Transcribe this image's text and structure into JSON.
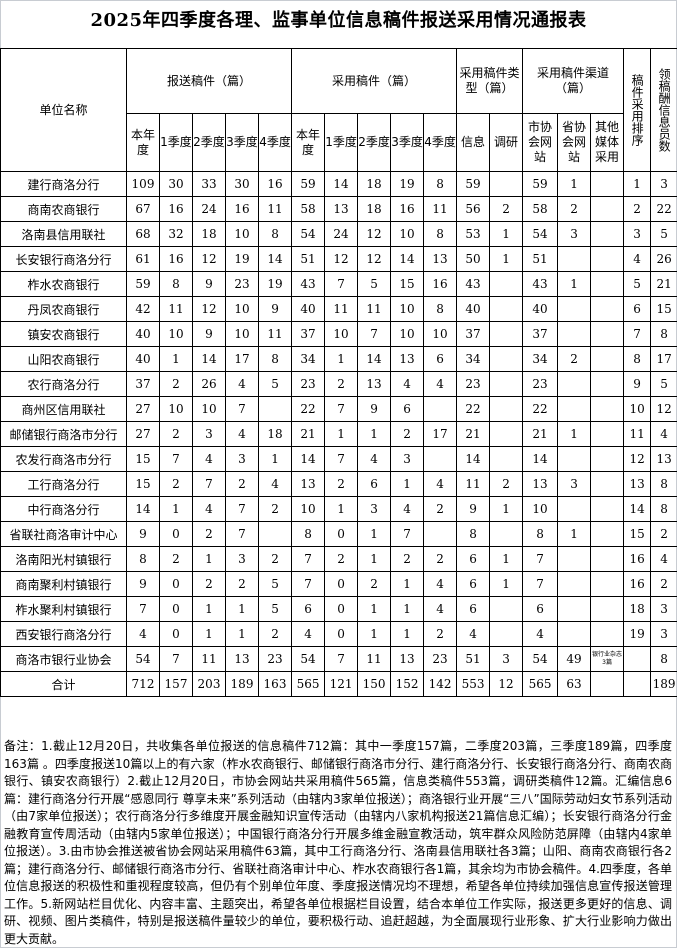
{
  "title": "2025年四季度各理、监事单位信息稿件报送采用情况通报表",
  "headers": {
    "unit_name": "单位名称",
    "submitted_group": "报送稿件（篇）",
    "adopted_group": "采用稿件（篇）",
    "type_group": "采用稿件类型（篇）",
    "channel_group": "采用稿件渠道（篇）",
    "rank": "稿件采用排序",
    "payees": "领稿酬信息员数",
    "submitted_cols": [
      "本年度",
      "1季度",
      "2季度",
      "3季度",
      "4季度"
    ],
    "adopted_cols": [
      "本年度",
      "1季度",
      "2季度",
      "3季度",
      "4季度"
    ],
    "type_cols": [
      "信息",
      "调研"
    ],
    "channel_cols": [
      "市协会网站",
      "省协会网站",
      "其他媒体采用"
    ]
  },
  "rows": [
    [
      "建行商洛分行",
      "109",
      "30",
      "33",
      "30",
      "16",
      "59",
      "14",
      "18",
      "19",
      "8",
      "59",
      "",
      "59",
      "1",
      "",
      "1",
      "3"
    ],
    [
      "商南农商银行",
      "67",
      "16",
      "24",
      "16",
      "11",
      "58",
      "13",
      "18",
      "16",
      "11",
      "56",
      "2",
      "58",
      "2",
      "",
      "2",
      "22"
    ],
    [
      "洛南县信用联社",
      "68",
      "32",
      "18",
      "10",
      "8",
      "54",
      "24",
      "12",
      "10",
      "8",
      "53",
      "1",
      "54",
      "3",
      "",
      "3",
      "5"
    ],
    [
      "长安银行商洛分行",
      "61",
      "16",
      "12",
      "19",
      "14",
      "51",
      "12",
      "12",
      "14",
      "13",
      "50",
      "1",
      "51",
      "",
      "",
      "4",
      "26"
    ],
    [
      "柞水农商银行",
      "59",
      "8",
      "9",
      "23",
      "19",
      "43",
      "7",
      "5",
      "15",
      "16",
      "43",
      "",
      "43",
      "1",
      "",
      "5",
      "21"
    ],
    [
      "丹凤农商银行",
      "42",
      "11",
      "12",
      "10",
      "9",
      "40",
      "11",
      "11",
      "10",
      "8",
      "40",
      "",
      "40",
      "",
      "",
      "6",
      "15"
    ],
    [
      "镇安农商银行",
      "40",
      "10",
      "9",
      "10",
      "11",
      "37",
      "10",
      "7",
      "10",
      "10",
      "37",
      "",
      "37",
      "",
      "",
      "7",
      "8"
    ],
    [
      "山阳农商银行",
      "40",
      "1",
      "14",
      "17",
      "8",
      "34",
      "1",
      "14",
      "13",
      "6",
      "34",
      "",
      "34",
      "2",
      "",
      "8",
      "17"
    ],
    [
      "农行商洛分行",
      "37",
      "2",
      "26",
      "4",
      "5",
      "23",
      "2",
      "13",
      "4",
      "4",
      "23",
      "",
      "23",
      "",
      "",
      "9",
      "5"
    ],
    [
      "商州区信用联社",
      "27",
      "10",
      "10",
      "7",
      "",
      "22",
      "7",
      "9",
      "6",
      "",
      "22",
      "",
      "22",
      "",
      "",
      "10",
      "12"
    ],
    [
      "邮储银行商洛市分行",
      "27",
      "2",
      "3",
      "4",
      "18",
      "21",
      "1",
      "1",
      "2",
      "17",
      "21",
      "",
      "21",
      "1",
      "",
      "11",
      "4"
    ],
    [
      "农发行商洛市分行",
      "15",
      "7",
      "4",
      "3",
      "1",
      "14",
      "7",
      "4",
      "3",
      "",
      "14",
      "",
      "14",
      "",
      "",
      "12",
      "13"
    ],
    [
      "工行商洛分行",
      "15",
      "2",
      "7",
      "2",
      "4",
      "13",
      "2",
      "6",
      "1",
      "4",
      "11",
      "2",
      "13",
      "3",
      "",
      "13",
      "8"
    ],
    [
      "中行商洛分行",
      "14",
      "1",
      "4",
      "7",
      "2",
      "10",
      "1",
      "3",
      "4",
      "2",
      "9",
      "1",
      "10",
      "",
      "",
      "14",
      "8"
    ],
    [
      "省联社商洛审计中心",
      "9",
      "0",
      "2",
      "7",
      "",
      "8",
      "0",
      "1",
      "7",
      "",
      "8",
      "",
      "8",
      "1",
      "",
      "15",
      "2"
    ],
    [
      "洛南阳光村镇银行",
      "8",
      "2",
      "1",
      "3",
      "2",
      "7",
      "2",
      "1",
      "2",
      "2",
      "6",
      "1",
      "7",
      "",
      "",
      "16",
      "4"
    ],
    [
      "商南聚利村镇银行",
      "9",
      "0",
      "2",
      "2",
      "5",
      "7",
      "0",
      "2",
      "1",
      "4",
      "6",
      "1",
      "7",
      "",
      "",
      "16",
      "2"
    ],
    [
      "柞水聚利村镇银行",
      "7",
      "0",
      "1",
      "1",
      "5",
      "6",
      "0",
      "1",
      "1",
      "4",
      "6",
      "",
      "6",
      "",
      "",
      "18",
      "3"
    ],
    [
      "西安银行商洛分行",
      "4",
      "0",
      "1",
      "1",
      "2",
      "4",
      "0",
      "1",
      "1",
      "2",
      "4",
      "",
      "4",
      "",
      "",
      "19",
      "3"
    ],
    [
      "商洛市银行业协会",
      "54",
      "7",
      "11",
      "13",
      "23",
      "54",
      "7",
      "11",
      "13",
      "23",
      "51",
      "3",
      "54",
      "49",
      "银行业杂志3篇",
      "",
      "8"
    ]
  ],
  "total": [
    "合计",
    "712",
    "157",
    "203",
    "189",
    "163",
    "565",
    "121",
    "150",
    "152",
    "142",
    "553",
    "12",
    "565",
    "63",
    "",
    "",
    "189"
  ],
  "notes": "备注：1.截止12月20日，共收集各单位报送的信息稿件712篇：其中一季度157篇，二季度203篇，三季度189篇，四季度163篇 。四季度报送10篇以上的有六家（柞水农商银行、邮储银行商洛市分行、建行商洛分行、长安银行商洛分行、商南农商银行、镇安农商银行）2.截止12月20日，市协会网站共采用稿件565篇，信息类稿件553篇，调研类稿件12篇。汇编信息6篇：建行商洛分行开展“感恩同行 尊享未来”系列活动（由辖内3家单位报送）；商洛银行业开展“三八”国际劳动妇女节系列活动（由7家单位报送）；农行商洛分行多维度开展金融知识宣传活动（由辖内八家机构报送21篇信息汇编）；长安银行商洛分行金融教育宣传周活动（由辖内5家单位报送）；中国银行商洛分行开展多维金融宣教活动，筑牢群众风险防范屏障（由辖内4家单位报送）。3.由市协会推送被省协会网站采用稿件63篇，其中工行商洛分行、洛南县信用联社各3篇；山阳、商南农商银行各2篇；建行商洛分行、邮储银行商洛市分行、省联社商洛审计中心、柞水农商银行各1篇，其余均为市协会稿件。4.四季度，各单位信息报送的积极性和重视程度较高，但仍有个别单位年度、季度报送情况均不理想，希望各单位持续加强信息宣传报送管理工作。5.新网站栏目优化、内容丰富、主题突出，希望各单位根据栏目设置，结合本单位工作实际，报送更多更好的信息、调研、视频、图片类稿件，特别是报送稿件量较少的单位，要积极行动、追赶超越，为全面展现行业形象、扩大行业影响力做出更大贡献。"
}
